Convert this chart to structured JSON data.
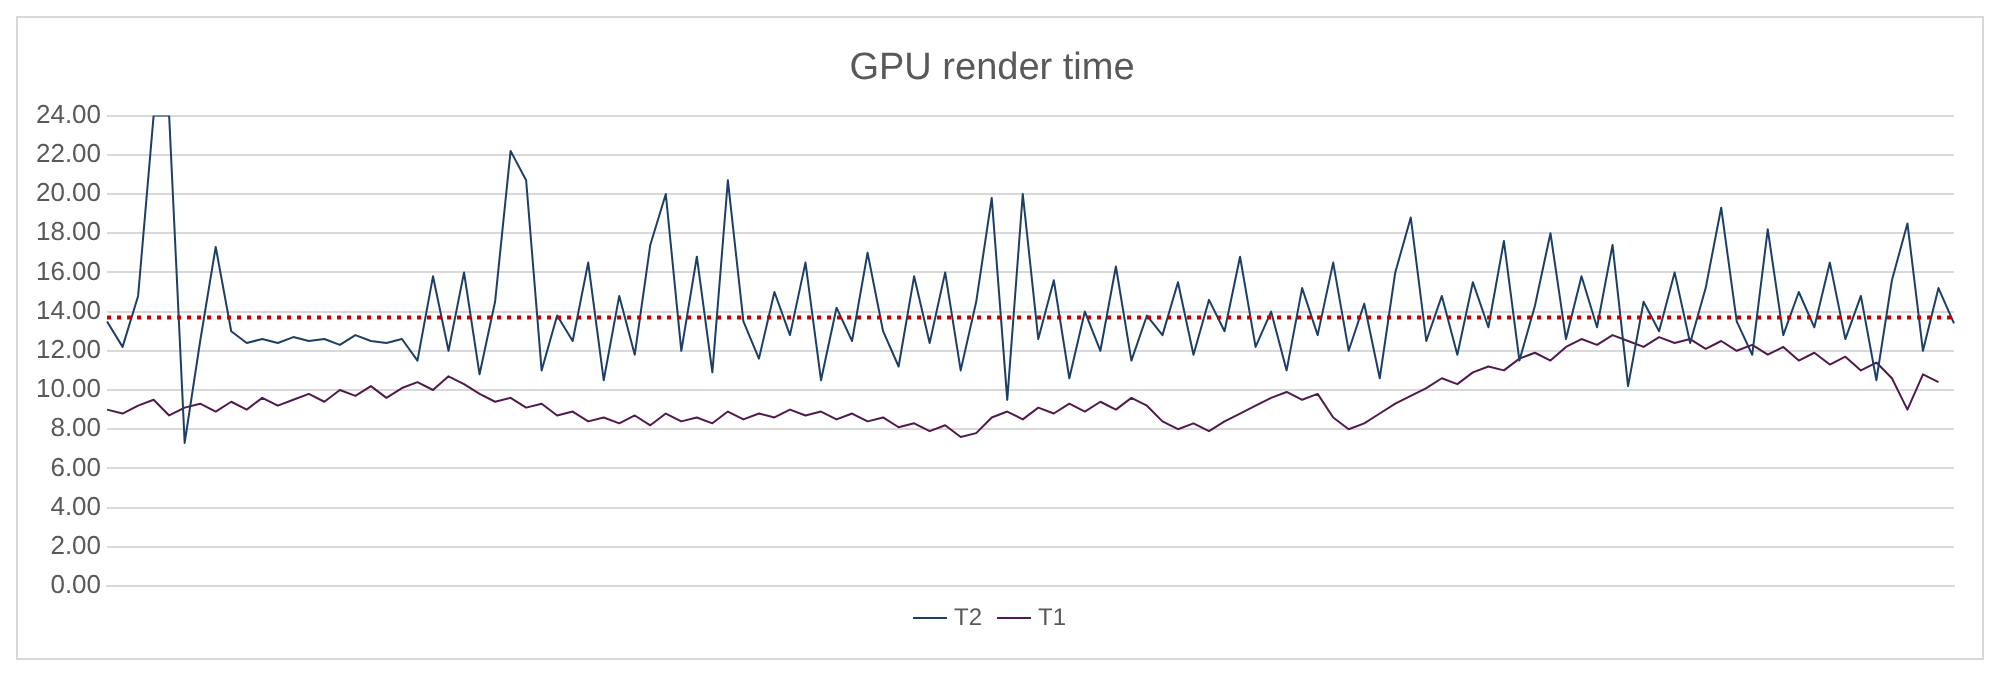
{
  "chart_data": {
    "type": "line",
    "title": "GPU render time",
    "categories": [
      null,
      null,
      null,
      null,
      null,
      null,
      null,
      null,
      null,
      null,
      null,
      null,
      null,
      null,
      null,
      null,
      null,
      null,
      null,
      null,
      null,
      null,
      null,
      null,
      null,
      null,
      null,
      null,
      null,
      null,
      null,
      null,
      null,
      null,
      null,
      null,
      null,
      null,
      null,
      null,
      null,
      null,
      null,
      null,
      null,
      null,
      null,
      null,
      null,
      null,
      null,
      null,
      null,
      null,
      null,
      null,
      null,
      null,
      null,
      null,
      null,
      null,
      null,
      null,
      null,
      null,
      null,
      null,
      null,
      null,
      null,
      null,
      null,
      null,
      null,
      null,
      null,
      null,
      null,
      null,
      null,
      null,
      null,
      null,
      null,
      null,
      null,
      null,
      null,
      null,
      null,
      null,
      null,
      null,
      null,
      null,
      null,
      null,
      null,
      null,
      null,
      null,
      null,
      null,
      null,
      null,
      null,
      null,
      null,
      null,
      null,
      null,
      null,
      null,
      null,
      null,
      null,
      null,
      null,
      null
    ],
    "series": [
      {
        "name": "T2",
        "color": "#1b3f66",
        "values": [
          13.5,
          12.2,
          14.8,
          24.0,
          24.0,
          7.3,
          12.5,
          17.3,
          13.0,
          12.4,
          12.6,
          12.4,
          12.7,
          12.5,
          12.6,
          12.3,
          12.8,
          12.5,
          12.4,
          12.6,
          11.5,
          15.8,
          12.0,
          16.0,
          10.8,
          14.5,
          22.2,
          20.7,
          11.0,
          13.8,
          12.5,
          16.5,
          10.5,
          14.8,
          11.8,
          17.4,
          20.0,
          12.0,
          16.8,
          10.9,
          20.7,
          13.5,
          11.6,
          15.0,
          12.8,
          16.5,
          10.5,
          14.2,
          12.5,
          17.0,
          13.0,
          11.2,
          15.8,
          12.4,
          16.0,
          11.0,
          14.5,
          19.8,
          9.5,
          20.0,
          12.6,
          15.6,
          10.6,
          14.0,
          12.0,
          16.3,
          11.5,
          13.8,
          12.8,
          15.5,
          11.8,
          14.6,
          13.0,
          16.8,
          12.2,
          14.0,
          11.0,
          15.2,
          12.8,
          16.5,
          12.0,
          14.4,
          10.6,
          16.0,
          18.8,
          12.5,
          14.8,
          11.8,
          15.5,
          13.2,
          17.6,
          11.5,
          14.3,
          18.0,
          12.6,
          15.8,
          13.2,
          17.4,
          10.2,
          14.5,
          13.0,
          16.0,
          12.4,
          15.2,
          19.3,
          13.5,
          11.8,
          18.2,
          12.8,
          15.0,
          13.2,
          16.5,
          12.6,
          14.8,
          10.5,
          15.6,
          18.5,
          12.0,
          15.2,
          13.4
        ]
      },
      {
        "name": "T1",
        "color": "#521a4c",
        "values": [
          9.0,
          8.8,
          9.2,
          9.5,
          8.7,
          9.1,
          9.3,
          8.9,
          9.4,
          9.0,
          9.6,
          9.2,
          9.5,
          9.8,
          9.4,
          10.0,
          9.7,
          10.2,
          9.6,
          10.1,
          10.4,
          10.0,
          10.7,
          10.3,
          9.8,
          9.4,
          9.6,
          9.1,
          9.3,
          8.7,
          8.9,
          8.4,
          8.6,
          8.3,
          8.7,
          8.2,
          8.8,
          8.4,
          8.6,
          8.3,
          8.9,
          8.5,
          8.8,
          8.6,
          9.0,
          8.7,
          8.9,
          8.5,
          8.8,
          8.4,
          8.6,
          8.1,
          8.3,
          7.9,
          8.2,
          7.6,
          7.8,
          8.6,
          8.9,
          8.5,
          9.1,
          8.8,
          9.3,
          8.9,
          9.4,
          9.0,
          9.6,
          9.2,
          8.4,
          8.0,
          8.3,
          7.9,
          8.4,
          8.8,
          9.2,
          9.6,
          9.9,
          9.5,
          9.8,
          8.6,
          8.0,
          8.3,
          8.8,
          9.3,
          9.7,
          10.1,
          10.6,
          10.3,
          10.9,
          11.2,
          11.0,
          11.6,
          11.9,
          11.5,
          12.2,
          12.6,
          12.3,
          12.8,
          12.5,
          12.2,
          12.7,
          12.4,
          12.6,
          12.1,
          12.5,
          12.0,
          12.3,
          11.8,
          12.2,
          11.5,
          11.9,
          11.3,
          11.7,
          11.0,
          11.4,
          10.6,
          9.0,
          10.8,
          10.4,
          null
        ]
      }
    ],
    "ylim": [
      0,
      24
    ],
    "yticks": [
      {
        "value": 0,
        "label": "0.00"
      },
      {
        "value": 2,
        "label": "2.00"
      },
      {
        "value": 4,
        "label": "4.00"
      },
      {
        "value": 6,
        "label": "6.00"
      },
      {
        "value": 8,
        "label": "8.00"
      },
      {
        "value": 10,
        "label": "10.00"
      },
      {
        "value": 12,
        "label": "12.00"
      },
      {
        "value": 14,
        "label": "14.00"
      },
      {
        "value": 16,
        "label": "16.00"
      },
      {
        "value": 18,
        "label": "18.00"
      },
      {
        "value": 20,
        "label": "20.00"
      },
      {
        "value": 22,
        "label": "22.00"
      },
      {
        "value": 24,
        "label": "24.00"
      }
    ],
    "ref_lines": [
      {
        "axis": "y",
        "value": 13.7,
        "color": "#c00000",
        "line_style": "dotted"
      }
    ],
    "grid": "y",
    "legend": "bottom",
    "tick_labels": "y",
    "marker": "none",
    "line_style": "solid"
  }
}
